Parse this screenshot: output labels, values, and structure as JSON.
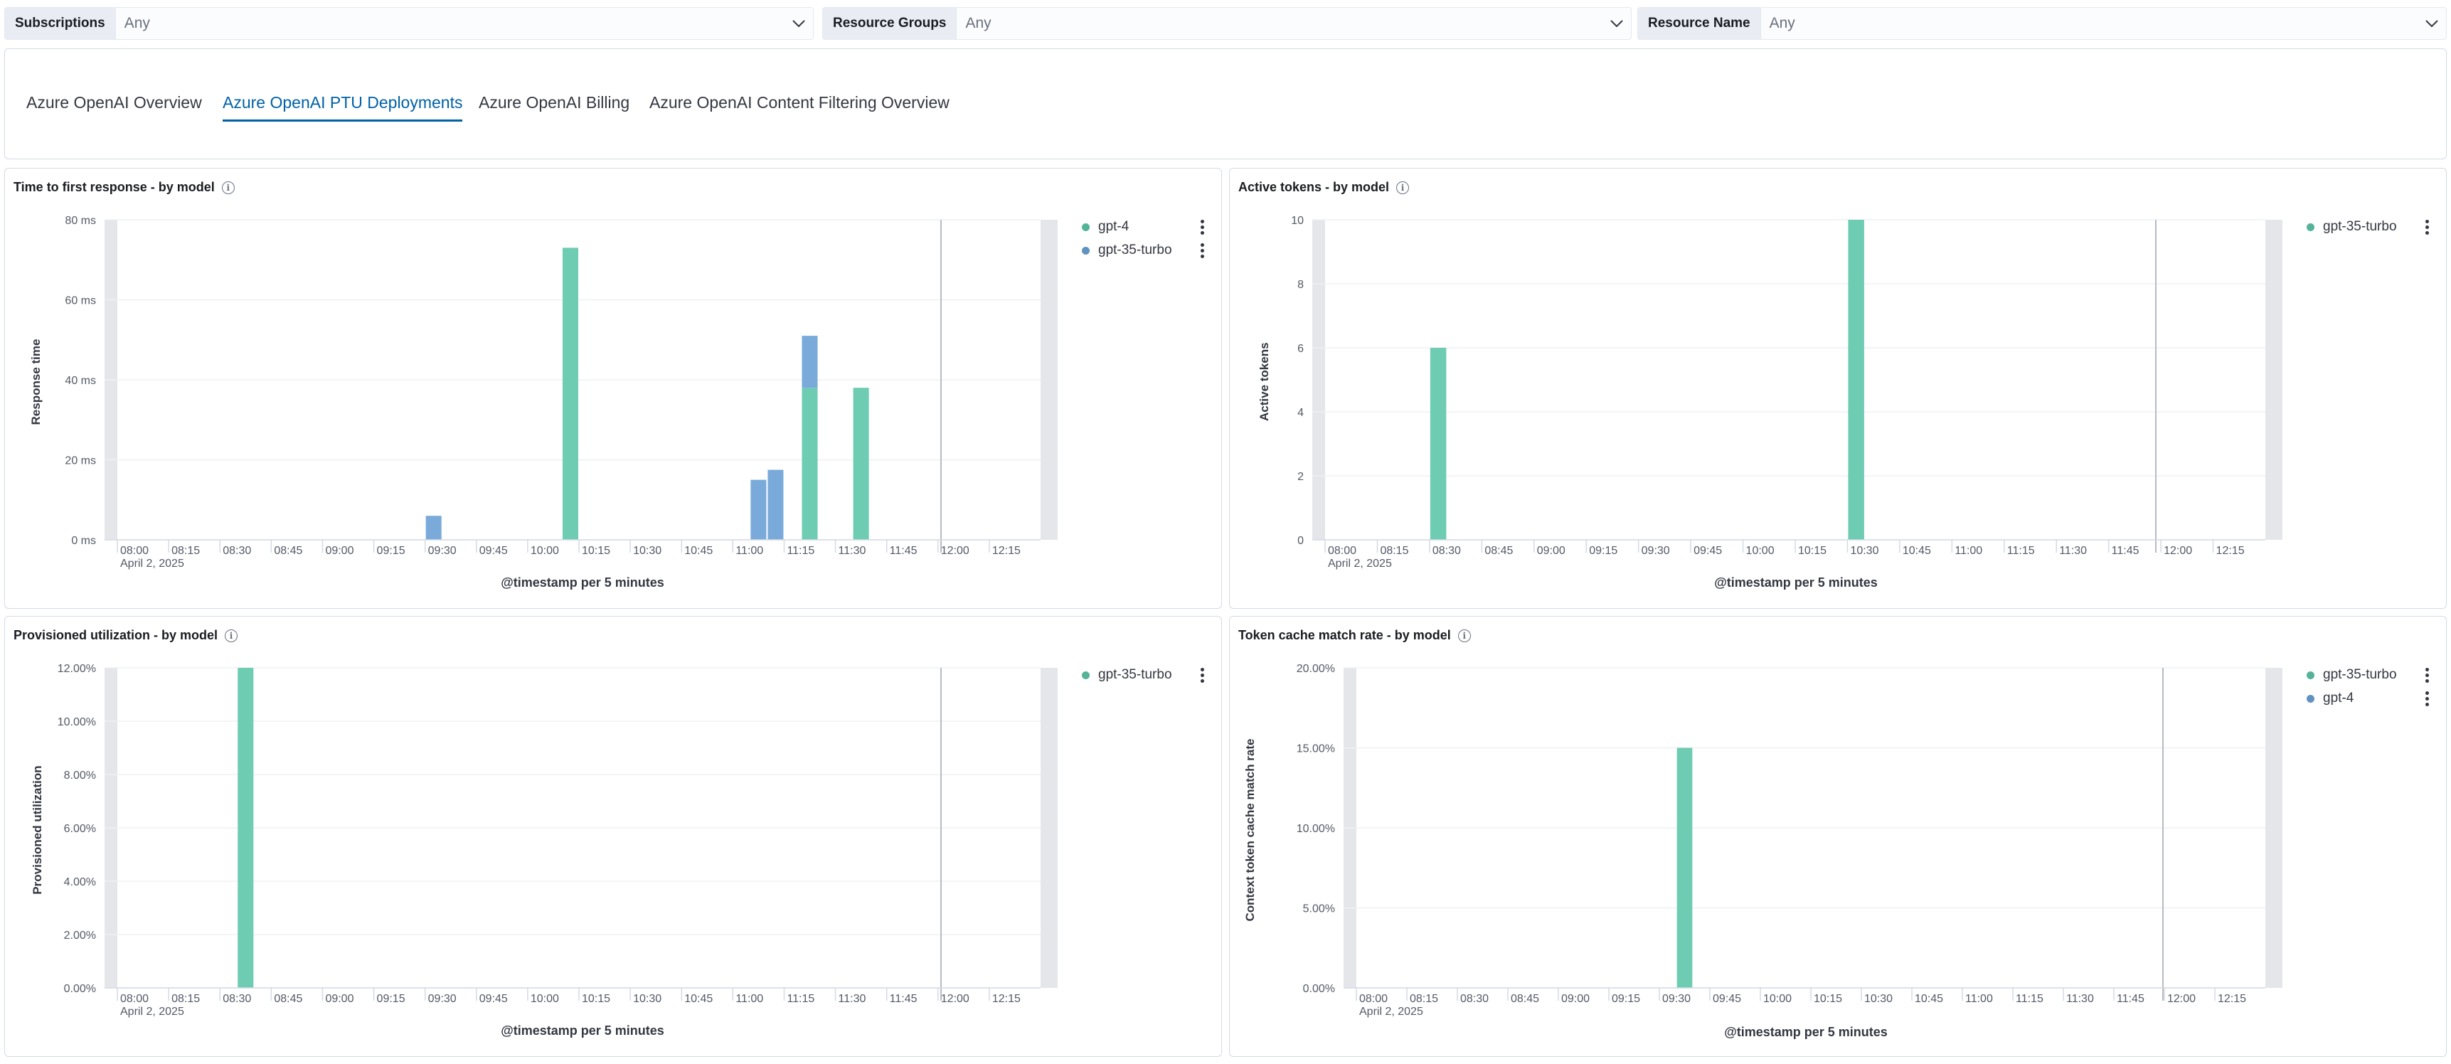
{
  "filters": [
    {
      "label": "Subscriptions",
      "value": "Any"
    },
    {
      "label": "Resource Groups",
      "value": "Any"
    },
    {
      "label": "Resource Name",
      "value": "Any"
    }
  ],
  "tabs": [
    {
      "label": "Azure OpenAI Overview",
      "active": false
    },
    {
      "label": "Azure OpenAI PTU Deployments",
      "active": true
    },
    {
      "label": "Azure OpenAI Billing",
      "active": false
    },
    {
      "label": "Azure OpenAI Content Filtering Overview",
      "active": false
    }
  ],
  "colors": {
    "gpt4": "#6dccb1",
    "gpt35": "#79aad9",
    "accent": "#0061a6"
  },
  "panels": [
    {
      "title": "Time to first response - by model",
      "ylabel": "Response time",
      "xtitle": "@timestamp per 5 minutes",
      "legend": [
        {
          "name": "gpt-4",
          "color": "#54b399"
        },
        {
          "name": "gpt-35-turbo",
          "color": "#6092c0"
        }
      ]
    },
    {
      "title": "Active tokens - by model",
      "ylabel": "Active tokens",
      "xtitle": "@timestamp per 5 minutes",
      "legend": [
        {
          "name": "gpt-35-turbo",
          "color": "#54b399"
        }
      ]
    },
    {
      "title": "Provisioned utilization - by model",
      "ylabel": "Provisioned utilization",
      "xtitle": "@timestamp per 5 minutes",
      "legend": [
        {
          "name": "gpt-35-turbo",
          "color": "#54b399"
        }
      ]
    },
    {
      "title": "Token cache match rate - by model",
      "ylabel": "Context token cache match rate",
      "xtitle": "@timestamp per 5 minutes",
      "legend": [
        {
          "name": "gpt-35-turbo",
          "color": "#54b399"
        },
        {
          "name": "gpt-4",
          "color": "#6092c0"
        }
      ]
    }
  ],
  "chart_data": [
    {
      "type": "bar",
      "title": "Time to first response - by model",
      "ylabel": "Response time",
      "xlabel": "@timestamp per 5 minutes",
      "date_label": "April 2, 2025",
      "y_ticks": [
        "0 ms",
        "20 ms",
        "40 ms",
        "60 ms",
        "80 ms"
      ],
      "ylim": [
        0,
        80
      ],
      "x_ticks": [
        "08:00",
        "08:15",
        "08:30",
        "08:45",
        "09:00",
        "09:15",
        "09:30",
        "09:45",
        "10:00",
        "10:15",
        "10:30",
        "10:45",
        "11:00",
        "11:15",
        "11:30",
        "11:45",
        "12:00",
        "12:15"
      ],
      "stacked": true,
      "bars": [
        {
          "time": "09:30",
          "values": [
            0,
            6
          ]
        },
        {
          "time": "10:10",
          "values": [
            73,
            0
          ]
        },
        {
          "time": "11:05",
          "values": [
            0,
            15
          ]
        },
        {
          "time": "11:10",
          "values": [
            0,
            17.5
          ]
        },
        {
          "time": "11:20",
          "values": [
            38,
            13
          ]
        },
        {
          "time": "11:35",
          "values": [
            38,
            0
          ]
        }
      ],
      "series": [
        {
          "name": "gpt-4"
        },
        {
          "name": "gpt-35-turbo"
        }
      ]
    },
    {
      "type": "bar",
      "title": "Active tokens - by model",
      "ylabel": "Active tokens",
      "xlabel": "@timestamp per 5 minutes",
      "date_label": "April 2, 2025",
      "y_ticks": [
        "0",
        "2",
        "4",
        "6",
        "8",
        "10"
      ],
      "ylim": [
        0,
        10
      ],
      "x_ticks": [
        "08:00",
        "08:15",
        "08:30",
        "08:45",
        "09:00",
        "09:15",
        "09:30",
        "09:45",
        "10:00",
        "10:15",
        "10:30",
        "10:45",
        "11:00",
        "11:15",
        "11:30",
        "11:45",
        "12:00",
        "12:15"
      ],
      "stacked": true,
      "bars": [
        {
          "time": "08:30",
          "values": [
            6
          ]
        },
        {
          "time": "10:30",
          "values": [
            10
          ]
        }
      ],
      "series": [
        {
          "name": "gpt-35-turbo"
        }
      ]
    },
    {
      "type": "bar",
      "title": "Provisioned utilization - by model",
      "ylabel": "Provisioned utilization",
      "xlabel": "@timestamp per 5 minutes",
      "date_label": "April 2, 2025",
      "y_ticks": [
        "0.00%",
        "2.00%",
        "4.00%",
        "6.00%",
        "8.00%",
        "10.00%",
        "12.00%"
      ],
      "ylim": [
        0,
        12
      ],
      "x_ticks": [
        "08:00",
        "08:15",
        "08:30",
        "08:45",
        "09:00",
        "09:15",
        "09:30",
        "09:45",
        "10:00",
        "10:15",
        "10:30",
        "10:45",
        "11:00",
        "11:15",
        "11:30",
        "11:45",
        "12:00",
        "12:15"
      ],
      "stacked": true,
      "bars": [
        {
          "time": "08:35",
          "values": [
            12
          ]
        }
      ],
      "series": [
        {
          "name": "gpt-35-turbo"
        }
      ]
    },
    {
      "type": "bar",
      "title": "Token cache match rate - by model",
      "ylabel": "Context token cache match rate",
      "xlabel": "@timestamp per 5 minutes",
      "date_label": "April 2, 2025",
      "y_ticks": [
        "0.00%",
        "5.00%",
        "10.00%",
        "15.00%",
        "20.00%"
      ],
      "ylim": [
        0,
        20
      ],
      "x_ticks": [
        "08:00",
        "08:15",
        "08:30",
        "08:45",
        "09:00",
        "09:15",
        "09:30",
        "09:45",
        "10:00",
        "10:15",
        "10:30",
        "10:45",
        "11:00",
        "11:15",
        "11:30",
        "11:45",
        "12:00",
        "12:15"
      ],
      "stacked": true,
      "bars": [
        {
          "time": "09:35",
          "values": [
            15
          ]
        }
      ],
      "series": [
        {
          "name": "gpt-35-turbo"
        },
        {
          "name": "gpt-4"
        }
      ]
    }
  ]
}
